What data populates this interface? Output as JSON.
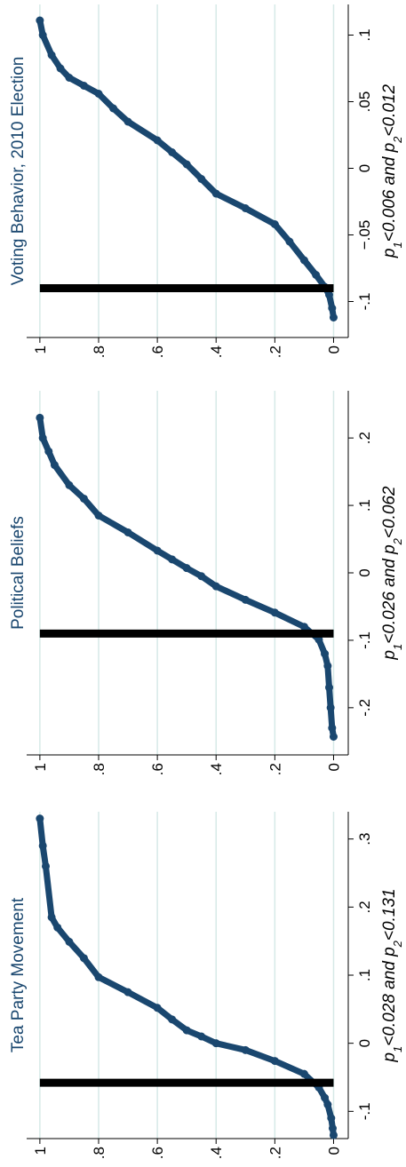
{
  "chart_data": [
    {
      "type": "scatter",
      "title": "Tea Party Movement",
      "note_parts": [
        "p",
        "1",
        "<0.028 and p",
        "2",
        "<0.131"
      ],
      "x": [
        -0.135,
        -0.125,
        -0.11,
        -0.09,
        -0.08,
        -0.065,
        -0.045,
        -0.026,
        -0.01,
        0,
        0.01,
        0.019,
        0.035,
        0.052,
        0.075,
        0.097,
        0.125,
        0.149,
        0.17,
        0.185,
        0.26,
        0.29,
        0.33
      ],
      "values": [
        0,
        0.003,
        0.008,
        0.02,
        0.03,
        0.05,
        0.1,
        0.2,
        0.3,
        0.4,
        0.45,
        0.5,
        0.55,
        0.6,
        0.7,
        0.8,
        0.85,
        0.9,
        0.94,
        0.96,
        0.98,
        0.99,
        1
      ],
      "color": "#1a476f",
      "estimate": -0.058,
      "xlim": [
        -0.14,
        0.34
      ],
      "xticks": [
        {
          "value": -0.1,
          "label": "-.1"
        },
        0,
        {
          "value": 0.1,
          "label": ".1"
        },
        {
          "value": 0.2,
          "label": ".2"
        },
        {
          "value": 0.3,
          "label": ".3"
        }
      ],
      "ylim": [
        -0.05,
        1.045
      ],
      "yticks": [
        0,
        {
          "value": 0.2,
          "label": ".2"
        },
        {
          "value": 0.4,
          "label": ".4"
        },
        {
          "value": 0.6,
          "label": ".6"
        },
        {
          "value": 0.8,
          "label": ".8"
        },
        1
      ],
      "grid": true
    },
    {
      "type": "scatter",
      "title": "Political Beliefs",
      "note_parts": [
        "p",
        "1",
        "<0.026 and p",
        "2",
        "<0.062"
      ],
      "x": [
        -0.243,
        -0.23,
        -0.2,
        -0.17,
        -0.138,
        -0.12,
        -0.099,
        -0.08,
        -0.059,
        -0.04,
        -0.02,
        -0.005,
        0.007,
        0.02,
        0.033,
        0.06,
        0.085,
        0.11,
        0.13,
        0.16,
        0.18,
        0.2,
        0.23
      ],
      "values": [
        0,
        0.005,
        0.01,
        0.015,
        0.02,
        0.03,
        0.05,
        0.1,
        0.2,
        0.3,
        0.4,
        0.45,
        0.5,
        0.55,
        0.6,
        0.7,
        0.8,
        0.85,
        0.9,
        0.95,
        0.97,
        0.99,
        1
      ],
      "color": "#1a476f",
      "estimate": -0.09,
      "xlim": [
        -0.27,
        0.27
      ],
      "xticks": [
        {
          "value": -0.2,
          "label": "-.2"
        },
        {
          "value": -0.1,
          "label": "-.1"
        },
        0,
        {
          "value": 0.1,
          "label": ".1"
        },
        {
          "value": 0.2,
          "label": ".2"
        }
      ],
      "ylim": [
        -0.05,
        1.045
      ],
      "yticks": [
        0,
        {
          "value": 0.2,
          "label": ".2"
        },
        {
          "value": 0.4,
          "label": ".4"
        },
        {
          "value": 0.6,
          "label": ".6"
        },
        {
          "value": 0.8,
          "label": ".8"
        },
        1
      ],
      "grid": true
    },
    {
      "type": "scatter",
      "title": "Voting Behavior, 2010 Election",
      "note_parts": [
        "p",
        "1",
        "<0.006 and p",
        "2",
        "<0.012"
      ],
      "x": [
        -0.112,
        -0.105,
        -0.095,
        -0.089,
        -0.08,
        -0.069,
        -0.055,
        -0.042,
        -0.03,
        -0.019,
        -0.008,
        0.003,
        0.012,
        0.021,
        0.035,
        0.045,
        0.056,
        0.062,
        0.068,
        0.075,
        0.085,
        0.1,
        0.111
      ],
      "values": [
        0,
        0.005,
        0.015,
        0.03,
        0.06,
        0.1,
        0.15,
        0.2,
        0.3,
        0.4,
        0.45,
        0.5,
        0.55,
        0.6,
        0.7,
        0.75,
        0.8,
        0.85,
        0.9,
        0.93,
        0.96,
        0.99,
        1
      ],
      "color": "#1a476f",
      "estimate": -0.09,
      "xlim": [
        -0.127,
        0.123
      ],
      "xticks": [
        {
          "value": -0.1,
          "label": "-.1"
        },
        {
          "value": -0.05,
          "label": "−.05"
        },
        0,
        {
          "value": 0.05,
          "label": ".05"
        },
        {
          "value": 0.1,
          "label": ".1"
        }
      ],
      "ylim": [
        -0.05,
        1.045
      ],
      "yticks": [
        0,
        {
          "value": 0.2,
          "label": ".2"
        },
        {
          "value": 0.4,
          "label": ".4"
        },
        {
          "value": 0.6,
          "label": ".6"
        },
        {
          "value": 0.8,
          "label": ".8"
        },
        1
      ],
      "grid": true
    }
  ]
}
